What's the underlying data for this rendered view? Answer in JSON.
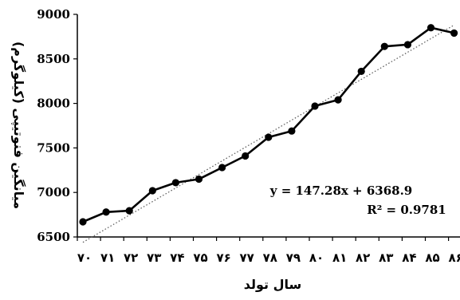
{
  "chart_data": {
    "type": "line",
    "title": "",
    "xlabel": "سال تولد",
    "ylabel": "میانگین فنوتیپی (کیلوگرم)",
    "categories": [
      "۷۰",
      "۷۱",
      "۷۲",
      "۷۳",
      "۷۴",
      "۷۵",
      "۷۶",
      "۷۷",
      "۷۸",
      "۷۹",
      "۸۰",
      "۸۱",
      "۸۲",
      "۸۳",
      "۸۴",
      "۸۵",
      "۸۶"
    ],
    "yticks": [
      "6500",
      "7000",
      "7500",
      "8000",
      "8500",
      "9000"
    ],
    "ylim": [
      6500,
      9000
    ],
    "series": [
      {
        "values": [
          6670,
          6780,
          6795,
          7020,
          7110,
          7150,
          7280,
          7410,
          7620,
          7690,
          7970,
          8040,
          8360,
          8640,
          8660,
          8850,
          8790
        ]
      }
    ],
    "trendline": {
      "type": "linear",
      "slope": 147.28,
      "intercept": 6368.9,
      "style": "dotted"
    },
    "annotations": {
      "equation": "y = 147.28x + 6368.9",
      "r_squared": "R² = 0.9781"
    },
    "grid": false,
    "legend": "none",
    "colors": {
      "series": "#000000",
      "trendline": "#555555"
    }
  }
}
